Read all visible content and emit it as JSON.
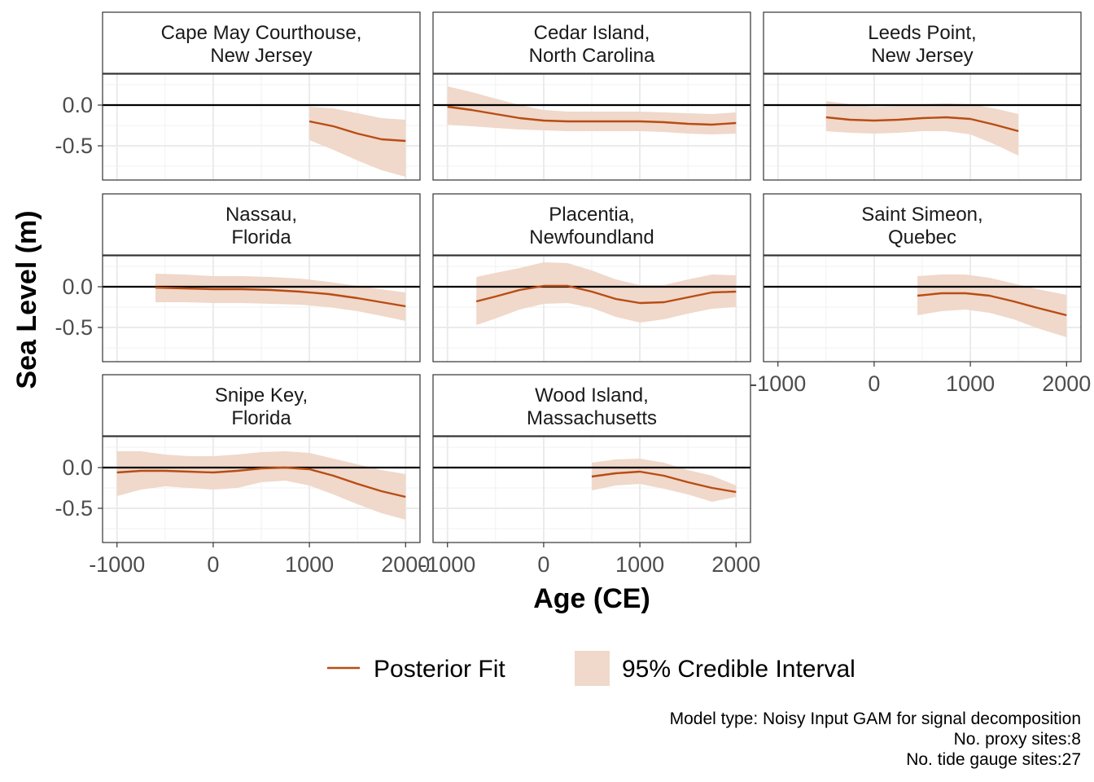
{
  "chart_data": {
    "type": "line",
    "xlabel": "Age (CE)",
    "ylabel": "Sea Level (m)",
    "xlim": [
      -1150,
      2150
    ],
    "ylim": [
      -0.92,
      0.38
    ],
    "x_ticks": [
      -1000,
      0,
      1000,
      2000
    ],
    "y_ticks": [
      0.0,
      -0.5
    ],
    "x_tick_labels": [
      "-1000",
      "0",
      "1000",
      "2000"
    ],
    "y_tick_labels": [
      "0.0",
      "-0.5"
    ],
    "reference_line_y": 0,
    "grid": true,
    "colors": {
      "fit": "#b84d14",
      "interval": "#f0d8ca",
      "reference": "#000000"
    },
    "legend": {
      "placement": "bottom",
      "entries": [
        {
          "label": "Posterior Fit",
          "kind": "line"
        },
        {
          "label": "95% Credible Interval",
          "kind": "fill"
        }
      ]
    },
    "caption": [
      "Model type: Noisy Input GAM for signal decomposition",
      "No. proxy sites:8",
      "No. tide gauge sites:27"
    ],
    "panels": [
      {
        "title": [
          "Cape May Courthouse,",
          "New Jersey"
        ],
        "x": [
          1000,
          1250,
          1500,
          1750,
          2000
        ],
        "fit": [
          -0.2,
          -0.26,
          -0.35,
          -0.42,
          -0.44
        ],
        "lower": [
          -0.43,
          -0.55,
          -0.68,
          -0.8,
          -0.88
        ],
        "upper": [
          -0.02,
          -0.04,
          -0.1,
          -0.16,
          -0.18
        ]
      },
      {
        "title": [
          "Cedar Island,",
          "North Carolina"
        ],
        "x": [
          -1000,
          -750,
          -500,
          -250,
          0,
          250,
          500,
          750,
          1000,
          1250,
          1500,
          1750,
          2000
        ],
        "fit": [
          -0.02,
          -0.06,
          -0.11,
          -0.16,
          -0.19,
          -0.2,
          -0.2,
          -0.2,
          -0.2,
          -0.21,
          -0.23,
          -0.24,
          -0.22
        ],
        "lower": [
          -0.24,
          -0.26,
          -0.28,
          -0.3,
          -0.31,
          -0.32,
          -0.32,
          -0.32,
          -0.32,
          -0.33,
          -0.35,
          -0.36,
          -0.35
        ],
        "upper": [
          0.23,
          0.16,
          0.08,
          0.0,
          -0.06,
          -0.08,
          -0.08,
          -0.08,
          -0.08,
          -0.09,
          -0.1,
          -0.11,
          -0.09
        ]
      },
      {
        "title": [
          "Leeds Point,",
          "New Jersey"
        ],
        "x": [
          -500,
          -250,
          0,
          250,
          500,
          750,
          1000,
          1250,
          1500
        ],
        "fit": [
          -0.15,
          -0.18,
          -0.19,
          -0.18,
          -0.16,
          -0.15,
          -0.17,
          -0.24,
          -0.32
        ],
        "lower": [
          -0.32,
          -0.34,
          -0.35,
          -0.34,
          -0.32,
          -0.32,
          -0.36,
          -0.48,
          -0.62
        ],
        "upper": [
          0.05,
          0.01,
          -0.02,
          -0.01,
          0.01,
          0.02,
          0.01,
          -0.04,
          -0.11
        ]
      },
      {
        "title": [
          "Nassau,",
          "Florida"
        ],
        "x": [
          -600,
          -300,
          0,
          300,
          600,
          900,
          1200,
          1500,
          1800,
          2000
        ],
        "fit": [
          -0.01,
          -0.02,
          -0.03,
          -0.03,
          -0.04,
          -0.06,
          -0.09,
          -0.14,
          -0.2,
          -0.24
        ],
        "lower": [
          -0.19,
          -0.19,
          -0.2,
          -0.2,
          -0.21,
          -0.22,
          -0.25,
          -0.3,
          -0.37,
          -0.42
        ],
        "upper": [
          0.16,
          0.15,
          0.13,
          0.13,
          0.12,
          0.1,
          0.06,
          0.01,
          -0.04,
          -0.07
        ]
      },
      {
        "title": [
          "Placentia,",
          "Newfoundland"
        ],
        "x": [
          -700,
          -500,
          -250,
          0,
          250,
          500,
          750,
          1000,
          1250,
          1500,
          1750,
          2000
        ],
        "fit": [
          -0.18,
          -0.12,
          -0.04,
          0.01,
          0.01,
          -0.06,
          -0.15,
          -0.2,
          -0.19,
          -0.13,
          -0.07,
          -0.06
        ],
        "lower": [
          -0.47,
          -0.39,
          -0.28,
          -0.21,
          -0.2,
          -0.26,
          -0.37,
          -0.44,
          -0.4,
          -0.33,
          -0.27,
          -0.25
        ],
        "upper": [
          0.12,
          0.17,
          0.23,
          0.3,
          0.29,
          0.2,
          0.09,
          0.02,
          0.02,
          0.09,
          0.15,
          0.14
        ]
      },
      {
        "title": [
          "Saint Simeon,",
          "Quebec"
        ],
        "x": [
          450,
          700,
          950,
          1200,
          1450,
          1700,
          2000
        ],
        "fit": [
          -0.11,
          -0.08,
          -0.08,
          -0.11,
          -0.18,
          -0.26,
          -0.35
        ],
        "lower": [
          -0.35,
          -0.3,
          -0.28,
          -0.32,
          -0.4,
          -0.51,
          -0.62
        ],
        "upper": [
          0.13,
          0.15,
          0.15,
          0.11,
          0.04,
          -0.03,
          -0.1
        ]
      },
      {
        "title": [
          "Snipe Key,",
          "Florida"
        ],
        "x": [
          -1000,
          -750,
          -500,
          -250,
          0,
          250,
          500,
          750,
          1000,
          1250,
          1500,
          1750,
          2000
        ],
        "fit": [
          -0.06,
          -0.04,
          -0.04,
          -0.05,
          -0.06,
          -0.04,
          -0.01,
          0.0,
          -0.02,
          -0.1,
          -0.2,
          -0.29,
          -0.36
        ],
        "lower": [
          -0.35,
          -0.27,
          -0.23,
          -0.25,
          -0.27,
          -0.25,
          -0.18,
          -0.16,
          -0.22,
          -0.33,
          -0.45,
          -0.56,
          -0.64
        ],
        "upper": [
          0.2,
          0.2,
          0.16,
          0.14,
          0.14,
          0.16,
          0.19,
          0.2,
          0.18,
          0.11,
          0.04,
          -0.03,
          -0.08
        ]
      },
      {
        "title": [
          "Wood Island,",
          "Massachusetts"
        ],
        "x": [
          500,
          750,
          1000,
          1250,
          1500,
          1750,
          2000
        ],
        "fit": [
          -0.11,
          -0.07,
          -0.05,
          -0.1,
          -0.18,
          -0.25,
          -0.3
        ],
        "lower": [
          -0.28,
          -0.22,
          -0.2,
          -0.26,
          -0.33,
          -0.42,
          -0.36
        ],
        "upper": [
          0.06,
          0.1,
          0.11,
          0.06,
          -0.03,
          -0.1,
          -0.22
        ]
      }
    ]
  }
}
